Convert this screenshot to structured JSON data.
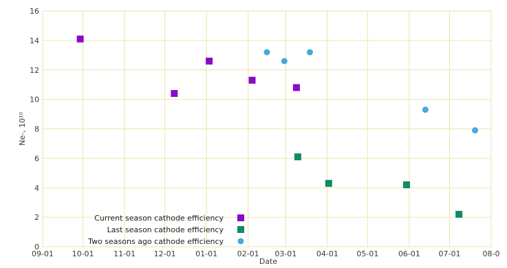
{
  "chart_data": {
    "type": "scatter",
    "title": "",
    "xlabel": "Date",
    "ylabel": "Ne-, 10¹⁰",
    "ylim": [
      0,
      16
    ],
    "yticks": [
      0,
      2,
      4,
      6,
      8,
      10,
      12,
      14,
      16
    ],
    "xlim": [
      "2000-09-01",
      "2001-08-01"
    ],
    "xticks": [
      {
        "date": "2000-09-01",
        "label": "09-01"
      },
      {
        "date": "2000-10-01",
        "label": "10-01"
      },
      {
        "date": "2000-11-01",
        "label": "11-01"
      },
      {
        "date": "2000-12-01",
        "label": "12-01"
      },
      {
        "date": "2001-01-01",
        "label": "01-01"
      },
      {
        "date": "2001-02-01",
        "label": "02-01"
      },
      {
        "date": "2001-03-01",
        "label": "03-01"
      },
      {
        "date": "2001-04-01",
        "label": "04-01"
      },
      {
        "date": "2001-05-01",
        "label": "05-01"
      },
      {
        "date": "2001-06-01",
        "label": "06-01"
      },
      {
        "date": "2001-07-01",
        "label": "07-01"
      },
      {
        "date": "2001-08-01",
        "label": "08-0"
      }
    ],
    "grid": true,
    "legend_position": "bottom-left",
    "series": [
      {
        "name": "Current season cathode efficiency",
        "marker": "square",
        "color": "#8a0ac9",
        "points": [
          {
            "x": "2000-09-29",
            "y": 14.1
          },
          {
            "x": "2000-12-08",
            "y": 10.4
          },
          {
            "x": "2001-01-03",
            "y": 12.6
          },
          {
            "x": "2001-02-04",
            "y": 11.3
          },
          {
            "x": "2001-03-09",
            "y": 10.8
          }
        ]
      },
      {
        "name": "Last season cathode efficiency",
        "marker": "square",
        "color": "#128a64",
        "points": [
          {
            "x": "2001-03-10",
            "y": 6.1
          },
          {
            "x": "2001-04-02",
            "y": 4.3
          },
          {
            "x": "2001-05-30",
            "y": 4.2
          },
          {
            "x": "2001-07-08",
            "y": 2.2
          }
        ]
      },
      {
        "name": "Two seasons ago cathode efficiency",
        "marker": "circle",
        "color": "#4aa8da",
        "points": [
          {
            "x": "2001-02-15",
            "y": 13.2
          },
          {
            "x": "2001-02-28",
            "y": 12.6
          },
          {
            "x": "2001-03-19",
            "y": 13.2
          },
          {
            "x": "2001-06-13",
            "y": 9.3
          },
          {
            "x": "2001-07-20",
            "y": 7.9
          }
        ]
      }
    ]
  }
}
